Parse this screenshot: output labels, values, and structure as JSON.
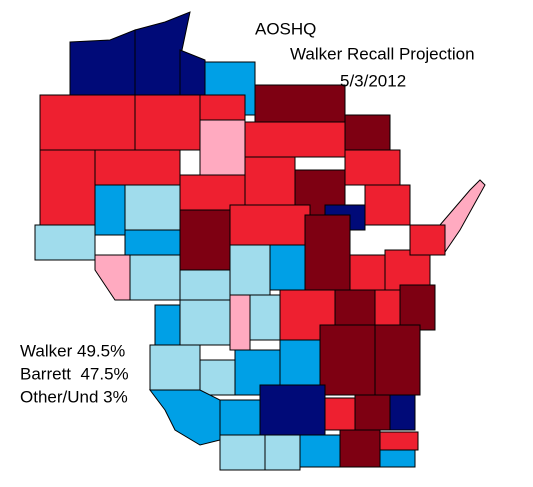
{
  "header": {
    "title": "AOSHQ",
    "subtitle": "Walker Recall Projection",
    "date": "5/3/2012"
  },
  "legend": [
    "Walker 49.5%",
    "Barrett  47.5%",
    "Other/Und 3%"
  ]
}
